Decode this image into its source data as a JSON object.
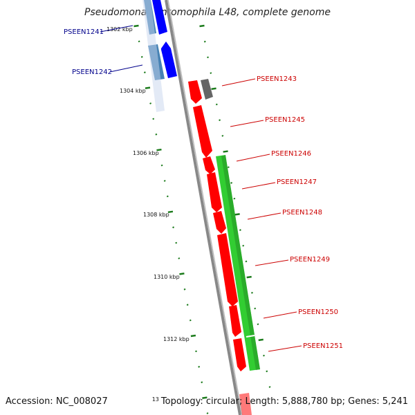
{
  "title": "Pseudomonas entomophila L48, complete genome",
  "footer": {
    "accession": "Accession: NC_008027",
    "corner_num": "13",
    "summary": "Topology: circular; Length: 5,888,780 bp; Genes: 5,241"
  },
  "colors": {
    "forward_cds": "#0000ff",
    "forward_cds_light": "#4682b4",
    "reverse_cds": "#ff0000",
    "gene_rna": "#32cd32",
    "unknown": "#666666",
    "tick": "#1a7a1a",
    "backbone": "#888888",
    "label_forward": "#00008b",
    "label_reverse": "#cc0000"
  },
  "scale_labels": [
    "1302 kbp",
    "1304 kbp",
    "1306 kbp",
    "1308 kbp",
    "1310 kbp",
    "1312 kbp"
  ],
  "gene_labels": {
    "forward": [
      "PSEEN1241",
      "PSEEN1242"
    ],
    "reverse": [
      "PSEEN1243",
      "PSEEN1245",
      "PSEEN1246",
      "PSEEN1247",
      "PSEEN1248",
      "PSEEN1249",
      "PSEEN1250",
      "PSEEN1251"
    ]
  }
}
